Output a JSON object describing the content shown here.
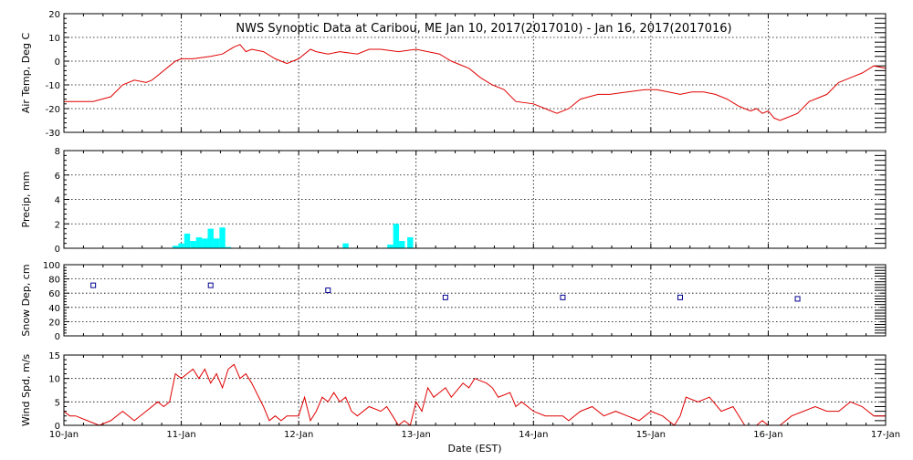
{
  "chart_data": {
    "type": "line",
    "title": "NWS Synoptic Data at Caribou, ME   Jan 10, 2017(2017010) - Jan 16, 2017(2017016)",
    "xlabel": "Date (EST)",
    "x_ticks": [
      "10-Jan",
      "11-Jan",
      "12-Jan",
      "13-Jan",
      "14-Jan",
      "15-Jan",
      "16-Jan",
      "17-Jan"
    ],
    "xlim": [
      0,
      7
    ],
    "colors": {
      "temp": "#e00000",
      "precip": "#00ffff",
      "snow": "#000090",
      "wind": "#e00000"
    },
    "panels": [
      {
        "id": "temp",
        "type": "line",
        "ylabel": "Air Temp, Deg C",
        "ylim": [
          -30,
          20
        ],
        "yticks": [
          -30,
          -20,
          -10,
          0,
          10,
          20
        ],
        "x": [
          0,
          0.25,
          0.4,
          0.5,
          0.6,
          0.7,
          0.75,
          0.8,
          0.9,
          0.95,
          1.0,
          1.1,
          1.25,
          1.35,
          1.45,
          1.5,
          1.55,
          1.6,
          1.7,
          1.8,
          1.85,
          1.9,
          2.0,
          2.1,
          2.15,
          2.25,
          2.35,
          2.5,
          2.6,
          2.7,
          2.85,
          3.0,
          3.1,
          3.2,
          3.3,
          3.45,
          3.55,
          3.65,
          3.75,
          3.85,
          4.0,
          4.1,
          4.2,
          4.3,
          4.4,
          4.55,
          4.65,
          4.8,
          4.95,
          5.05,
          5.15,
          5.25,
          5.35,
          5.45,
          5.55,
          5.65,
          5.75,
          5.85,
          5.9,
          5.95,
          6.0,
          6.05,
          6.1,
          6.15,
          6.25,
          6.35,
          6.5,
          6.6,
          6.7,
          6.8,
          6.9,
          7.0
        ],
        "y": [
          -17,
          -17,
          -15,
          -10,
          -8,
          -9,
          -8,
          -6,
          -2,
          0,
          1,
          1,
          2,
          3,
          6,
          7,
          4,
          5,
          4,
          1,
          0,
          -1,
          1,
          5,
          4,
          3,
          4,
          3,
          5,
          5,
          4,
          5,
          4,
          3,
          0,
          -3,
          -7,
          -10,
          -12,
          -17,
          -18,
          -20,
          -22,
          -20,
          -16,
          -14,
          -14,
          -13,
          -12,
          -12,
          -13,
          -14,
          -13,
          -13,
          -14,
          -16,
          -19,
          -21,
          -20,
          -22,
          -21,
          -24,
          -25,
          -24,
          -22,
          -17,
          -14,
          -9,
          -7,
          -5,
          -2,
          -3
        ]
      },
      {
        "id": "precip",
        "type": "bar",
        "ylabel": "Precip, mm",
        "ylim": [
          0,
          8
        ],
        "yticks": [
          0,
          2,
          4,
          6,
          8
        ],
        "x": [
          0.95,
          1.0,
          1.05,
          1.1,
          1.15,
          1.2,
          1.25,
          1.3,
          1.35,
          1.4,
          2.4,
          2.78,
          2.83,
          2.88,
          2.95
        ],
        "values": [
          0.2,
          0.4,
          1.2,
          0.6,
          0.9,
          0.8,
          1.6,
          0.8,
          1.7,
          0.1,
          0.4,
          0.3,
          2.0,
          0.6,
          0.9
        ]
      },
      {
        "id": "snow",
        "type": "scatter",
        "ylabel": "Snow Dep, cm",
        "ylim": [
          0,
          100
        ],
        "yticks": [
          0,
          20,
          40,
          60,
          80,
          100
        ],
        "x": [
          0.25,
          1.25,
          2.25,
          3.25,
          4.25,
          5.25,
          6.25
        ],
        "y": [
          71,
          71,
          64,
          54,
          54,
          54,
          52
        ]
      },
      {
        "id": "wind",
        "type": "line",
        "ylabel": "Wind Spd, m/s",
        "ylim": [
          0,
          15
        ],
        "yticks": [
          0,
          5,
          10,
          15
        ],
        "x": [
          0,
          0.05,
          0.1,
          0.2,
          0.3,
          0.4,
          0.5,
          0.6,
          0.7,
          0.8,
          0.85,
          0.9,
          0.95,
          1.0,
          1.05,
          1.1,
          1.15,
          1.2,
          1.25,
          1.3,
          1.35,
          1.4,
          1.45,
          1.5,
          1.55,
          1.6,
          1.7,
          1.75,
          1.8,
          1.85,
          1.9,
          1.95,
          2.0,
          2.05,
          2.1,
          2.15,
          2.2,
          2.25,
          2.3,
          2.35,
          2.4,
          2.45,
          2.5,
          2.6,
          2.7,
          2.75,
          2.8,
          2.85,
          2.9,
          2.95,
          3.0,
          3.05,
          3.1,
          3.15,
          3.2,
          3.25,
          3.3,
          3.4,
          3.45,
          3.5,
          3.6,
          3.65,
          3.7,
          3.8,
          3.85,
          3.9,
          4.0,
          4.1,
          4.2,
          4.25,
          4.3,
          4.4,
          4.5,
          4.6,
          4.7,
          4.8,
          4.9,
          5.0,
          5.1,
          5.15,
          5.2,
          5.25,
          5.3,
          5.4,
          5.5,
          5.6,
          5.7,
          5.8,
          5.9,
          5.95,
          6.0,
          6.05,
          6.1,
          6.2,
          6.3,
          6.4,
          6.5,
          6.6,
          6.7,
          6.8,
          6.9,
          7.0
        ],
        "y": [
          3,
          2,
          2,
          1,
          0,
          1,
          3,
          1,
          3,
          5,
          4,
          5,
          11,
          10,
          11,
          12,
          10,
          12,
          9,
          11,
          8,
          12,
          13,
          10,
          11,
          9,
          4,
          1,
          2,
          1,
          2,
          2,
          2,
          6,
          1,
          3,
          6,
          5,
          7,
          5,
          6,
          3,
          2,
          4,
          3,
          4,
          2,
          0,
          1,
          0,
          5,
          3,
          8,
          6,
          7,
          8,
          6,
          9,
          8,
          10,
          9,
          8,
          6,
          7,
          4,
          5,
          3,
          2,
          2,
          2,
          1,
          3,
          4,
          2,
          3,
          2,
          1,
          3,
          2,
          1,
          0,
          2,
          6,
          5,
          6,
          3,
          4,
          0,
          0,
          1,
          0,
          0,
          0,
          2,
          3,
          4,
          3,
          3,
          5,
          4,
          2,
          2
        ]
      }
    ]
  }
}
